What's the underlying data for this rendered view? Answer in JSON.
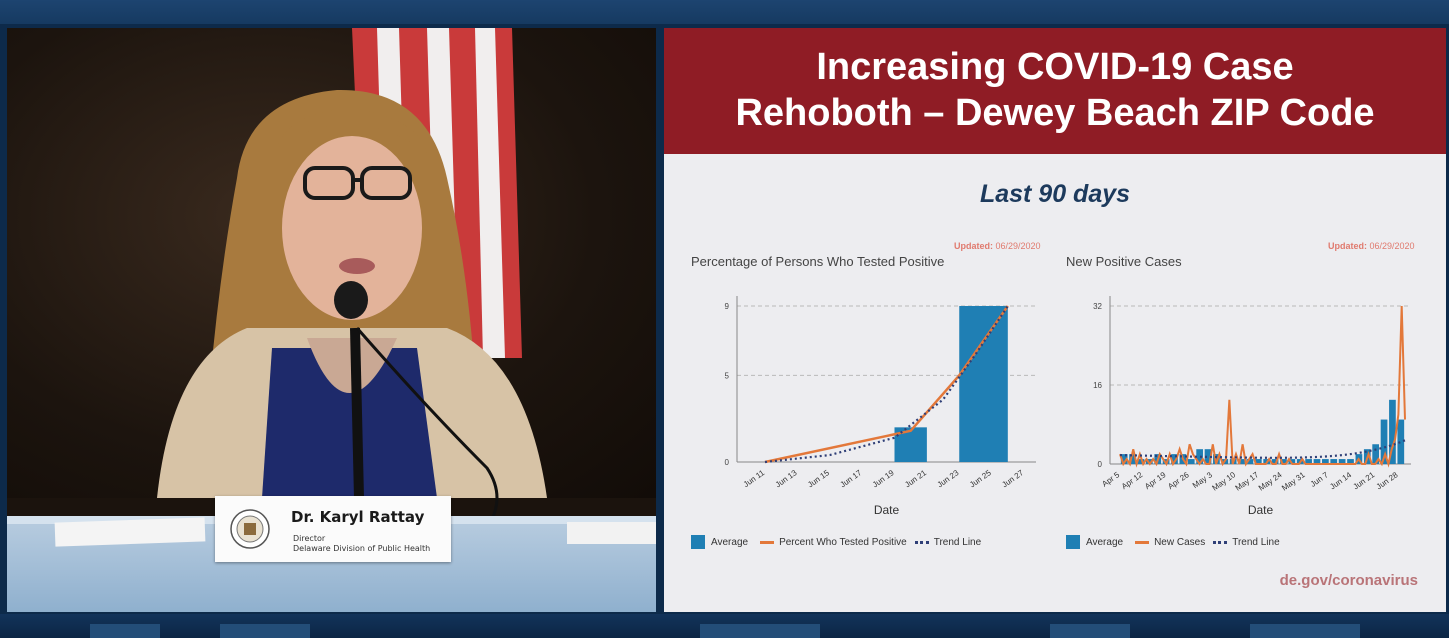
{
  "nameplate": {
    "name": "Dr. Karyl Rattay",
    "title": "Director",
    "org": "Delaware Division of Public Health"
  },
  "slide": {
    "title_line1": "Increasing COVID-19 Case",
    "title_line2": "Rehoboth – Dewey Beach ZIP Code",
    "subtitle": "Last 90 days",
    "footer": "de.gov/coronavirus",
    "updated_label": "Updated:",
    "updated_date": "06/29/2020",
    "colors": {
      "header": "#8f1c25",
      "bar": "#1f7fb4",
      "line": "#e3783a",
      "trend": "#2f3f77"
    }
  },
  "chart_data": [
    {
      "type": "bar",
      "title": "Percentage of Persons Who Tested Positive",
      "xlabel": "Date",
      "ylabel": "",
      "y_ticks": [
        0,
        5,
        9
      ],
      "ylim": [
        0,
        9
      ],
      "x_ticks": [
        "Jun 11",
        "Jun 13",
        "Jun 15",
        "Jun 17",
        "Jun 19",
        "Jun 21",
        "Jun 23",
        "Jun 25",
        "Jun 27"
      ],
      "bars": [
        {
          "start": 4,
          "end": 5,
          "value": 2
        },
        {
          "start": 6,
          "end": 7.5,
          "value": 9
        }
      ],
      "line": [
        {
          "x": 0,
          "y": 0
        },
        {
          "x": 4.5,
          "y": 1.8
        },
        {
          "x": 6,
          "y": 5
        },
        {
          "x": 7.5,
          "y": 9
        }
      ],
      "trend": [
        {
          "x": 0,
          "y": 0
        },
        {
          "x": 2,
          "y": 0.4
        },
        {
          "x": 4,
          "y": 1.4
        },
        {
          "x": 5.5,
          "y": 3.6
        },
        {
          "x": 6.5,
          "y": 6.2
        },
        {
          "x": 7.5,
          "y": 9
        }
      ],
      "legend": [
        "Average",
        "Percent Who Tested Positive",
        "Trend Line"
      ],
      "grid": true
    },
    {
      "type": "bar",
      "title": "New Positive Cases",
      "xlabel": "Date",
      "ylabel": "",
      "y_ticks": [
        0,
        16,
        32
      ],
      "ylim": [
        0,
        32
      ],
      "x_ticks": [
        "Apr 5",
        "Apr 12",
        "Apr 19",
        "Apr 26",
        "May 3",
        "May 10",
        "May 17",
        "May 24",
        "May 31",
        "Jun 7",
        "Jun 14",
        "Jun 21",
        "Jun 28"
      ],
      "daily_cases": [
        2,
        0,
        1,
        0,
        3,
        0,
        2,
        0,
        1,
        0,
        1,
        0,
        2,
        1,
        0,
        2,
        0,
        1,
        3,
        1,
        0,
        4,
        2,
        1,
        0,
        1,
        0,
        0,
        4,
        0,
        2,
        0,
        1,
        13,
        0,
        2,
        0,
        4,
        0,
        1,
        2,
        0,
        0,
        0,
        0,
        1,
        0,
        0,
        2,
        0,
        0,
        1,
        0,
        0,
        0,
        1,
        0,
        0,
        0,
        0,
        0,
        0,
        0,
        0,
        0,
        0,
        0,
        0,
        0,
        0,
        0,
        0,
        1,
        0,
        0,
        2,
        0,
        0,
        1,
        0,
        2,
        0,
        3,
        5,
        10,
        32,
        9
      ],
      "weekly_average": [
        2,
        2,
        1,
        1,
        2,
        1,
        2,
        2,
        1,
        3,
        3,
        2,
        1,
        1,
        1,
        1,
        1,
        1,
        1,
        1,
        1,
        1,
        1,
        1,
        1,
        1,
        1,
        1,
        2,
        3,
        4,
        9,
        13,
        9
      ],
      "legend": [
        "Average",
        "New Cases",
        "Trend Line"
      ],
      "grid": true
    }
  ]
}
